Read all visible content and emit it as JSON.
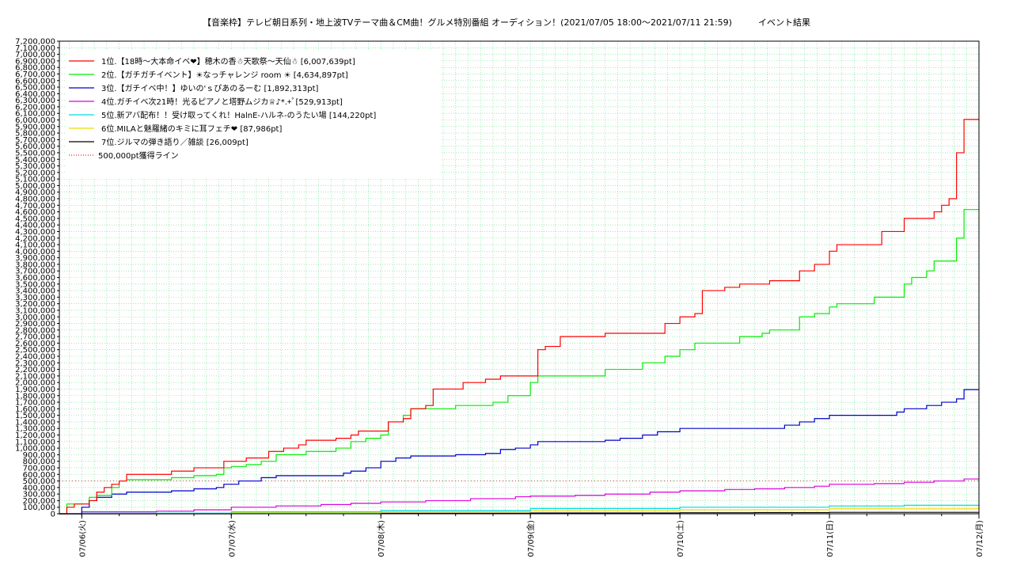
{
  "chart_data": {
    "type": "line",
    "title": "【音楽枠】テレビ朝日系列・地上波TVテーマ曲＆CM曲！グルメ特別番組 オーディション！(2021/07/05 18:00〜2021/07/11 21:59)　　　イベント結果",
    "xlabel": "",
    "ylabel": "",
    "ylim": [
      0,
      7200000
    ],
    "yticks": [
      0,
      100000,
      200000,
      300000,
      400000,
      500000,
      600000,
      700000,
      800000,
      900000,
      1000000,
      1100000,
      1200000,
      1300000,
      1400000,
      1500000,
      1600000,
      1700000,
      1800000,
      1900000,
      2000000,
      2100000,
      2200000,
      2300000,
      2400000,
      2500000,
      2600000,
      2700000,
      2800000,
      2900000,
      3000000,
      3100000,
      3200000,
      3300000,
      3400000,
      3500000,
      3600000,
      3700000,
      3800000,
      3900000,
      4000000,
      4100000,
      4200000,
      4300000,
      4400000,
      4500000,
      4600000,
      4700000,
      4800000,
      4900000,
      5000000,
      5100000,
      5200000,
      5300000,
      5400000,
      5500000,
      5600000,
      5700000,
      5800000,
      5900000,
      6000000,
      6100000,
      6200000,
      6300000,
      6400000,
      6500000,
      6600000,
      6700000,
      6800000,
      6900000,
      7000000,
      7100000,
      7200000
    ],
    "xlim": [
      -0.15,
      6.0
    ],
    "x_ticks": [
      {
        "x": 0,
        "label": "07/06(火)"
      },
      {
        "x": 1,
        "label": "07/07(水)"
      },
      {
        "x": 2,
        "label": "07/08(木)"
      },
      {
        "x": 3,
        "label": "07/09(金)"
      },
      {
        "x": 4,
        "label": "07/10(土)"
      },
      {
        "x": 5,
        "label": "07/11(日)"
      },
      {
        "x": 6,
        "label": "07/12(月)"
      }
    ],
    "grid": true,
    "legend_position": "top-left",
    "series": [
      {
        "name": "1位.【18時〜大本命イベ❤】穂木の香☃天歌祭〜天仙☃ [6,007,639pt]",
        "color": "#ff0000",
        "points": [
          [
            -0.15,
            0
          ],
          [
            -0.1,
            100000
          ],
          [
            -0.05,
            150000
          ],
          [
            0,
            150000
          ],
          [
            0.05,
            200000
          ],
          [
            0.1,
            330000
          ],
          [
            0.15,
            400000
          ],
          [
            0.2,
            450000
          ],
          [
            0.25,
            500000
          ],
          [
            0.3,
            600000
          ],
          [
            0.55,
            600000
          ],
          [
            0.6,
            650000
          ],
          [
            0.75,
            700000
          ],
          [
            0.9,
            700000
          ],
          [
            0.95,
            800000
          ],
          [
            1.1,
            850000
          ],
          [
            1.2,
            850000
          ],
          [
            1.25,
            950000
          ],
          [
            1.3,
            950000
          ],
          [
            1.35,
            1000000
          ],
          [
            1.45,
            1050000
          ],
          [
            1.5,
            1120000
          ],
          [
            1.7,
            1150000
          ],
          [
            1.8,
            1200000
          ],
          [
            1.85,
            1260000
          ],
          [
            2.0,
            1260000
          ],
          [
            2.05,
            1400000
          ],
          [
            2.15,
            1450000
          ],
          [
            2.2,
            1600000
          ],
          [
            2.3,
            1650000
          ],
          [
            2.35,
            1900000
          ],
          [
            2.5,
            1900000
          ],
          [
            2.55,
            2000000
          ],
          [
            2.7,
            2050000
          ],
          [
            2.8,
            2100000
          ],
          [
            3.0,
            2100000
          ],
          [
            3.05,
            2500000
          ],
          [
            3.1,
            2550000
          ],
          [
            3.2,
            2700000
          ],
          [
            3.45,
            2700000
          ],
          [
            3.5,
            2750000
          ],
          [
            3.6,
            2750000
          ],
          [
            3.85,
            2750000
          ],
          [
            3.9,
            2900000
          ],
          [
            4.0,
            3000000
          ],
          [
            4.1,
            3050000
          ],
          [
            4.15,
            3400000
          ],
          [
            4.3,
            3450000
          ],
          [
            4.4,
            3500000
          ],
          [
            4.6,
            3550000
          ],
          [
            4.75,
            3550000
          ],
          [
            4.8,
            3700000
          ],
          [
            4.9,
            3800000
          ],
          [
            5.0,
            4000000
          ],
          [
            5.05,
            4100000
          ],
          [
            5.3,
            4100000
          ],
          [
            5.35,
            4300000
          ],
          [
            5.45,
            4300000
          ],
          [
            5.5,
            4500000
          ],
          [
            5.65,
            4500000
          ],
          [
            5.7,
            4600000
          ],
          [
            5.75,
            4700000
          ],
          [
            5.8,
            4800000
          ],
          [
            5.85,
            5500000
          ],
          [
            5.9,
            6007639
          ],
          [
            6.0,
            6007639
          ]
        ]
      },
      {
        "name": "2位.【ガチガチイベント】☀なっチャレンジ room ☀ [4,634,897pt]",
        "color": "#00ee00",
        "points": [
          [
            -0.15,
            0
          ],
          [
            -0.1,
            150000
          ],
          [
            0,
            150000
          ],
          [
            0.05,
            250000
          ],
          [
            0.1,
            280000
          ],
          [
            0.2,
            400000
          ],
          [
            0.25,
            500000
          ],
          [
            0.3,
            520000
          ],
          [
            0.55,
            520000
          ],
          [
            0.6,
            550000
          ],
          [
            0.75,
            580000
          ],
          [
            0.9,
            600000
          ],
          [
            0.95,
            700000
          ],
          [
            1.0,
            720000
          ],
          [
            1.1,
            750000
          ],
          [
            1.2,
            800000
          ],
          [
            1.3,
            900000
          ],
          [
            1.45,
            900000
          ],
          [
            1.5,
            950000
          ],
          [
            1.7,
            1000000
          ],
          [
            1.8,
            1100000
          ],
          [
            1.9,
            1150000
          ],
          [
            2.0,
            1200000
          ],
          [
            2.05,
            1400000
          ],
          [
            2.15,
            1500000
          ],
          [
            2.2,
            1600000
          ],
          [
            2.5,
            1650000
          ],
          [
            2.7,
            1650000
          ],
          [
            2.75,
            1700000
          ],
          [
            2.85,
            1800000
          ],
          [
            3.0,
            2000000
          ],
          [
            3.05,
            2100000
          ],
          [
            3.2,
            2100000
          ],
          [
            3.45,
            2100000
          ],
          [
            3.5,
            2200000
          ],
          [
            3.6,
            2200000
          ],
          [
            3.75,
            2300000
          ],
          [
            3.9,
            2400000
          ],
          [
            4.0,
            2500000
          ],
          [
            4.1,
            2600000
          ],
          [
            4.25,
            2600000
          ],
          [
            4.35,
            2600000
          ],
          [
            4.4,
            2700000
          ],
          [
            4.55,
            2750000
          ],
          [
            4.6,
            2800000
          ],
          [
            4.75,
            2800000
          ],
          [
            4.8,
            3000000
          ],
          [
            4.9,
            3050000
          ],
          [
            5.0,
            3150000
          ],
          [
            5.05,
            3200000
          ],
          [
            5.3,
            3300000
          ],
          [
            5.45,
            3300000
          ],
          [
            5.5,
            3500000
          ],
          [
            5.55,
            3600000
          ],
          [
            5.65,
            3700000
          ],
          [
            5.7,
            3850000
          ],
          [
            5.8,
            3850000
          ],
          [
            5.85,
            4200000
          ],
          [
            5.9,
            4634897
          ],
          [
            6.0,
            4634897
          ]
        ]
      },
      {
        "name": "3位.【ガチイベ中！】ゆいの'ｓぴあのるーむ [1,892,313pt]",
        "color": "#0000cc",
        "points": [
          [
            -0.15,
            0
          ],
          [
            0,
            100000
          ],
          [
            0.05,
            200000
          ],
          [
            0.1,
            250000
          ],
          [
            0.2,
            300000
          ],
          [
            0.3,
            330000
          ],
          [
            0.55,
            330000
          ],
          [
            0.6,
            350000
          ],
          [
            0.75,
            380000
          ],
          [
            0.9,
            400000
          ],
          [
            0.95,
            450000
          ],
          [
            1.05,
            500000
          ],
          [
            1.2,
            550000
          ],
          [
            1.3,
            580000
          ],
          [
            1.5,
            580000
          ],
          [
            1.7,
            580000
          ],
          [
            1.75,
            620000
          ],
          [
            1.8,
            650000
          ],
          [
            1.9,
            700000
          ],
          [
            2.0,
            800000
          ],
          [
            2.1,
            850000
          ],
          [
            2.2,
            880000
          ],
          [
            2.35,
            880000
          ],
          [
            2.5,
            900000
          ],
          [
            2.6,
            900000
          ],
          [
            2.7,
            920000
          ],
          [
            2.8,
            980000
          ],
          [
            2.9,
            1000000
          ],
          [
            3.0,
            1050000
          ],
          [
            3.05,
            1100000
          ],
          [
            3.25,
            1100000
          ],
          [
            3.45,
            1100000
          ],
          [
            3.5,
            1120000
          ],
          [
            3.6,
            1150000
          ],
          [
            3.75,
            1200000
          ],
          [
            3.85,
            1250000
          ],
          [
            4.0,
            1300000
          ],
          [
            4.1,
            1300000
          ],
          [
            4.3,
            1300000
          ],
          [
            4.4,
            1300000
          ],
          [
            4.6,
            1300000
          ],
          [
            4.7,
            1350000
          ],
          [
            4.8,
            1400000
          ],
          [
            4.9,
            1450000
          ],
          [
            5.0,
            1500000
          ],
          [
            5.2,
            1500000
          ],
          [
            5.3,
            1500000
          ],
          [
            5.45,
            1550000
          ],
          [
            5.5,
            1600000
          ],
          [
            5.65,
            1650000
          ],
          [
            5.75,
            1700000
          ],
          [
            5.85,
            1750000
          ],
          [
            5.9,
            1892313
          ],
          [
            6.0,
            1892313
          ]
        ]
      },
      {
        "name": "4位.ガチイベ次21時！光るピアノと塔野ムジカ♕♪*.+ﾟ[529,913pt]",
        "color": "#dd00dd",
        "points": [
          [
            -0.15,
            0
          ],
          [
            0,
            30000
          ],
          [
            0.5,
            40000
          ],
          [
            0.75,
            60000
          ],
          [
            1.0,
            100000
          ],
          [
            1.3,
            120000
          ],
          [
            1.6,
            140000
          ],
          [
            1.8,
            160000
          ],
          [
            2.0,
            180000
          ],
          [
            2.3,
            200000
          ],
          [
            2.6,
            230000
          ],
          [
            2.9,
            260000
          ],
          [
            3.0,
            270000
          ],
          [
            3.3,
            280000
          ],
          [
            3.5,
            300000
          ],
          [
            3.8,
            330000
          ],
          [
            4.0,
            350000
          ],
          [
            4.3,
            370000
          ],
          [
            4.5,
            380000
          ],
          [
            4.7,
            400000
          ],
          [
            4.9,
            420000
          ],
          [
            5.0,
            450000
          ],
          [
            5.3,
            460000
          ],
          [
            5.5,
            480000
          ],
          [
            5.7,
            500000
          ],
          [
            5.9,
            529913
          ],
          [
            6.0,
            529913
          ]
        ]
      },
      {
        "name": "5位.新アバ配布！！受け取ってくれ！HalnE-ハルネ-のうたい場 [144,220pt]",
        "color": "#00dddd",
        "points": [
          [
            -0.15,
            0
          ],
          [
            0,
            10000
          ],
          [
            1.0,
            30000
          ],
          [
            2.0,
            50000
          ],
          [
            3.0,
            80000
          ],
          [
            4.0,
            100000
          ],
          [
            5.0,
            120000
          ],
          [
            5.5,
            130000
          ],
          [
            6.0,
            144220
          ]
        ]
      },
      {
        "name": "6位.MILAと魅羅緒のキミに耳フェチ❤ [87,986pt]",
        "color": "#eedd00",
        "points": [
          [
            -0.15,
            0
          ],
          [
            0,
            5000
          ],
          [
            1.0,
            15000
          ],
          [
            2.0,
            30000
          ],
          [
            3.0,
            45000
          ],
          [
            4.0,
            60000
          ],
          [
            5.0,
            75000
          ],
          [
            6.0,
            87986
          ]
        ]
      },
      {
        "name": "7位.ジルマの弾き語り／雑談 [26,009pt]",
        "color": "#000000",
        "points": [
          [
            -0.15,
            0
          ],
          [
            1.0,
            3000
          ],
          [
            2.0,
            8000
          ],
          [
            3.0,
            12000
          ],
          [
            4.0,
            16000
          ],
          [
            4.5,
            18000
          ],
          [
            5.0,
            22000
          ],
          [
            6.0,
            26009
          ]
        ]
      }
    ],
    "reference_line": {
      "name": "500,000pt獲得ライン",
      "value": 500000,
      "color": "#cc3333"
    }
  }
}
